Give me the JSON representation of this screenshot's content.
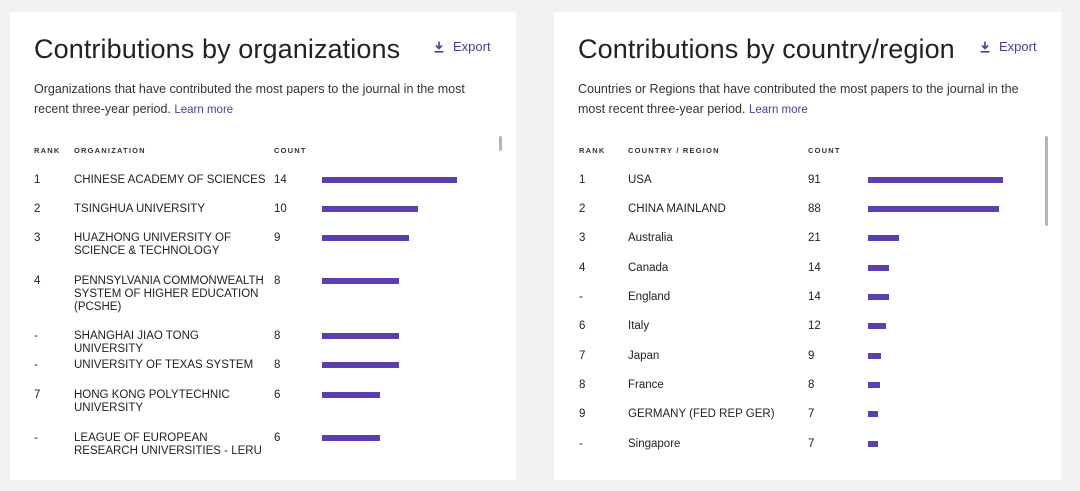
{
  "org_panel": {
    "title": "Contributions by organizations",
    "export_label": "Export",
    "description": "Organizations that have contributed the most papers to the journal in the most recent three-year period.",
    "learn_more": "Learn more",
    "headers": {
      "rank": "RANK",
      "name": "ORGANIZATION",
      "count": "COUNT"
    },
    "bar_color": "#5b3fb0",
    "rows": [
      {
        "rank": "1",
        "name": "CHINESE ACADEMY OF SCIENCES",
        "count": "14",
        "value": 14
      },
      {
        "rank": "2",
        "name": "TSINGHUA UNIVERSITY",
        "count": "10",
        "value": 10
      },
      {
        "rank": "3",
        "name": "HUAZHONG UNIVERSITY OF SCIENCE & TECHNOLOGY",
        "count": "9",
        "value": 9
      },
      {
        "rank": "4",
        "name": "PENNSYLVANIA COMMONWEALTH SYSTEM OF HIGHER EDUCATION (PCSHE)",
        "count": "8",
        "value": 8
      },
      {
        "rank": "-",
        "name": "SHANGHAI JIAO TONG UNIVERSITY",
        "count": "8",
        "value": 8
      },
      {
        "rank": "-",
        "name": "UNIVERSITY OF TEXAS SYSTEM",
        "count": "8",
        "value": 8
      },
      {
        "rank": "7",
        "name": "HONG KONG POLYTECHNIC UNIVERSITY",
        "count": "6",
        "value": 6
      },
      {
        "rank": "-",
        "name": "LEAGUE OF EUROPEAN RESEARCH UNIVERSITIES - LERU",
        "count": "6",
        "value": 6
      }
    ]
  },
  "country_panel": {
    "title": "Contributions by country/region",
    "export_label": "Export",
    "description": "Countries or Regions that have contributed the most papers to the journal in the most recent three-year period.",
    "learn_more": "Learn more",
    "headers": {
      "rank": "RANK",
      "name": "COUNTRY / REGION",
      "count": "COUNT"
    },
    "bar_color": "#5b3fb0",
    "rows": [
      {
        "rank": "1",
        "name": "USA",
        "count": "91",
        "value": 91
      },
      {
        "rank": "2",
        "name": "CHINA MAINLAND",
        "count": "88",
        "value": 88
      },
      {
        "rank": "3",
        "name": "Australia",
        "count": "21",
        "value": 21
      },
      {
        "rank": "4",
        "name": "Canada",
        "count": "14",
        "value": 14
      },
      {
        "rank": "-",
        "name": "England",
        "count": "14",
        "value": 14
      },
      {
        "rank": "6",
        "name": "Italy",
        "count": "12",
        "value": 12
      },
      {
        "rank": "7",
        "name": "Japan",
        "count": "9",
        "value": 9
      },
      {
        "rank": "8",
        "name": "France",
        "count": "8",
        "value": 8
      },
      {
        "rank": "9",
        "name": "GERMANY (FED REP GER)",
        "count": "7",
        "value": 7
      },
      {
        "rank": "-",
        "name": "Singapore",
        "count": "7",
        "value": 7
      }
    ]
  }
}
